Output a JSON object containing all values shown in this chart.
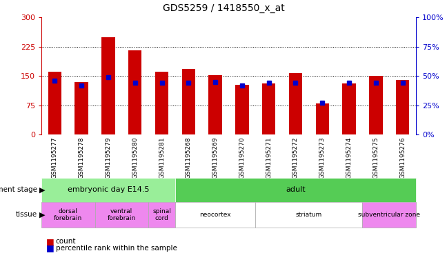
{
  "title": "GDS5259 / 1418550_x_at",
  "samples": [
    "GSM1195277",
    "GSM1195278",
    "GSM1195279",
    "GSM1195280",
    "GSM1195281",
    "GSM1195268",
    "GSM1195269",
    "GSM1195270",
    "GSM1195271",
    "GSM1195272",
    "GSM1195273",
    "GSM1195274",
    "GSM1195275",
    "GSM1195276"
  ],
  "counts": [
    160,
    135,
    248,
    215,
    160,
    167,
    152,
    127,
    130,
    157,
    80,
    130,
    150,
    140
  ],
  "percentiles": [
    46,
    42,
    49,
    44,
    44,
    44,
    45,
    42,
    44,
    44,
    27,
    44,
    44,
    44
  ],
  "ylim_left": [
    0,
    300
  ],
  "ylim_right": [
    0,
    100
  ],
  "yticks_left": [
    0,
    75,
    150,
    225,
    300
  ],
  "yticks_right": [
    0,
    25,
    50,
    75,
    100
  ],
  "bar_color": "#cc0000",
  "dot_color": "#0000cc",
  "tick_bg": "#cccccc",
  "left_axis_color": "#cc0000",
  "right_axis_color": "#0000cc",
  "development_stages": [
    {
      "label": "embryonic day E14.5",
      "start": 0,
      "end": 4,
      "color": "#99ee99"
    },
    {
      "label": "adult",
      "start": 5,
      "end": 13,
      "color": "#55cc55"
    }
  ],
  "tissues": [
    {
      "label": "dorsal\nforebrain",
      "start": 0,
      "end": 1,
      "color": "#ee88ee"
    },
    {
      "label": "ventral\nforebrain",
      "start": 2,
      "end": 3,
      "color": "#ee88ee"
    },
    {
      "label": "spinal\ncord",
      "start": 4,
      "end": 4,
      "color": "#ee88ee"
    },
    {
      "label": "neocortex",
      "start": 5,
      "end": 7,
      "color": "#ffffff"
    },
    {
      "label": "striatum",
      "start": 8,
      "end": 11,
      "color": "#ffffff"
    },
    {
      "label": "subventricular zone",
      "start": 12,
      "end": 13,
      "color": "#ee88ee"
    }
  ],
  "legend_items": [
    {
      "color": "#cc0000",
      "label": "count"
    },
    {
      "color": "#0000cc",
      "label": "percentile rank within the sample"
    }
  ]
}
